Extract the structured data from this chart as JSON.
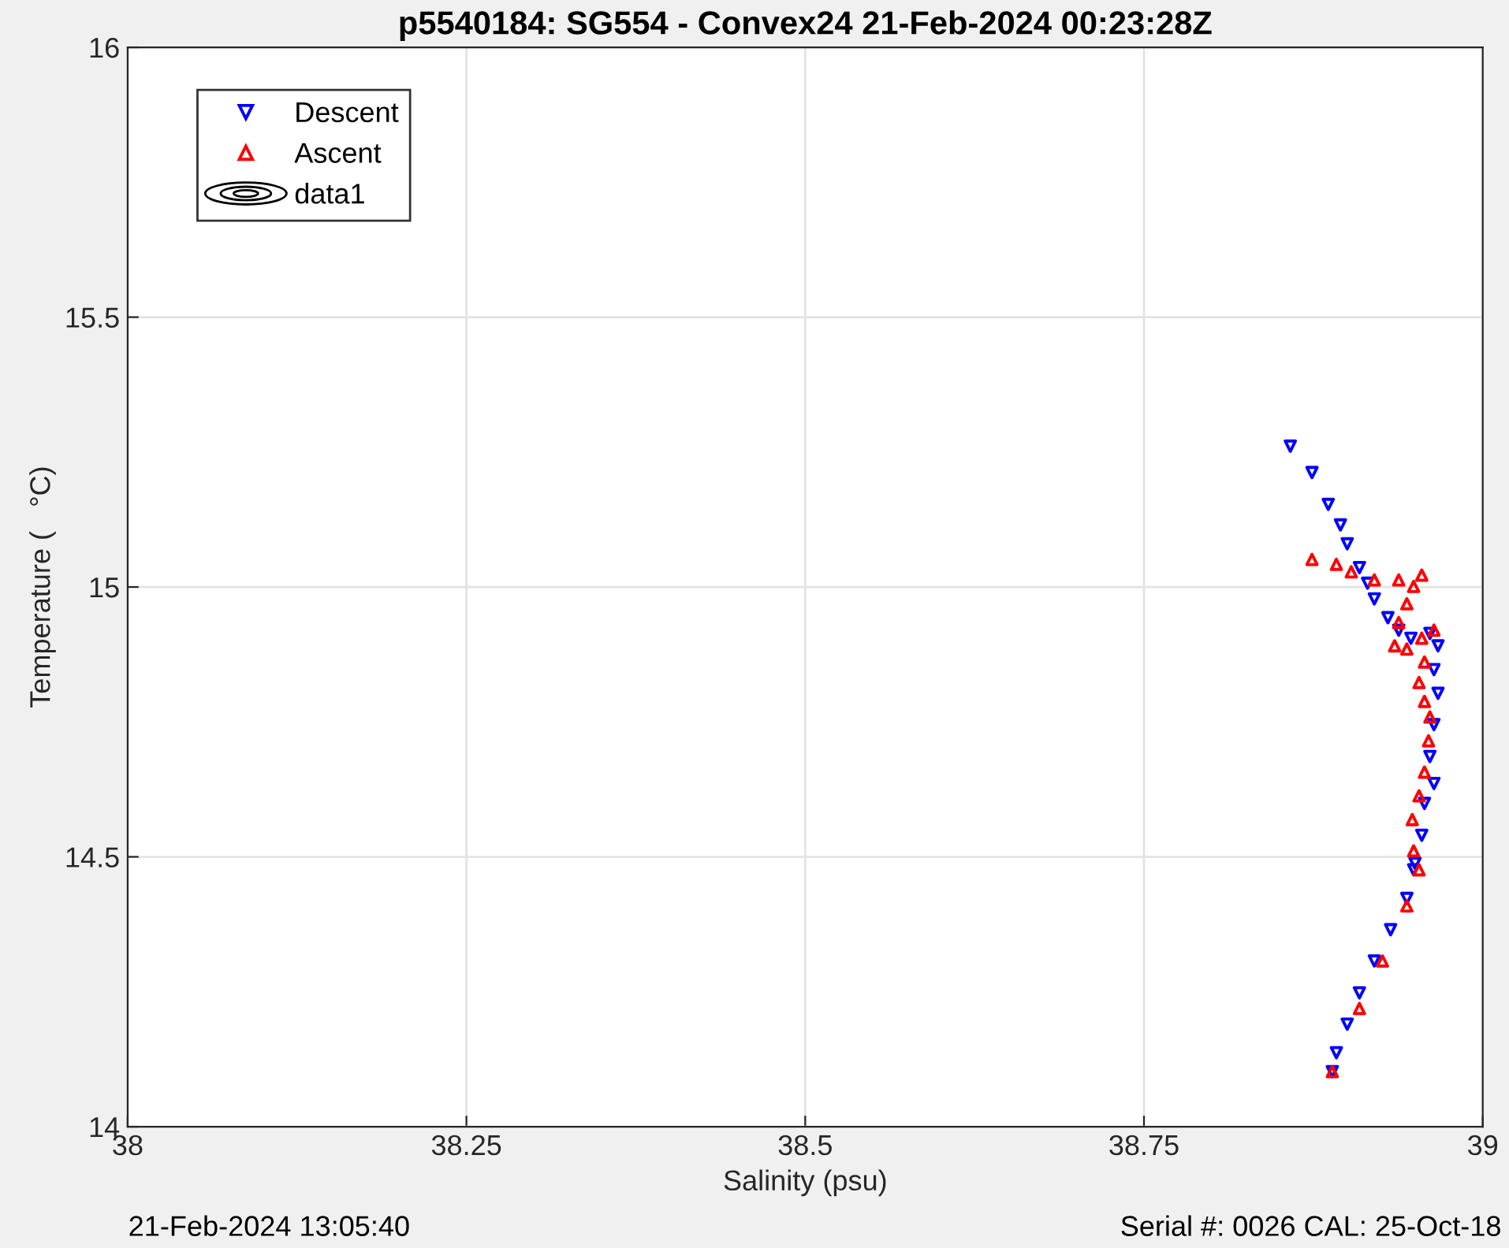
{
  "chart_data": {
    "type": "scatter",
    "title": "p5540184: SG554 - Convex24 21-Feb-2024 00:23:28Z",
    "xlabel": "Salinity (psu)",
    "ylabel": "Temperature (   °C)",
    "xlim": [
      38,
      39
    ],
    "xticks": [
      38,
      38.25,
      38.5,
      38.75,
      39
    ],
    "ylim": [
      14,
      16
    ],
    "yticks": [
      14,
      14.5,
      15,
      15.5,
      16
    ],
    "grid": true,
    "legend": "top left",
    "series": [
      {
        "name": "Descent",
        "color": "#0000ff",
        "marker": "triangle-down",
        "x": [
          38.858,
          38.874,
          38.886,
          38.895,
          38.9,
          38.909,
          38.915,
          38.92,
          38.93,
          38.938,
          38.947,
          38.961,
          38.967,
          38.964,
          38.967,
          38.964,
          38.961,
          38.964,
          38.957,
          38.955,
          38.95,
          38.949,
          38.944,
          38.932,
          38.92,
          38.909,
          38.9,
          38.892,
          38.889
        ],
        "values": [
          15.261,
          15.212,
          15.153,
          15.115,
          15.08,
          15.036,
          15.007,
          14.978,
          14.943,
          14.92,
          14.905,
          14.914,
          14.891,
          14.847,
          14.803,
          14.745,
          14.686,
          14.636,
          14.599,
          14.54,
          14.488,
          14.476,
          14.423,
          14.365,
          14.307,
          14.248,
          14.19,
          14.137,
          14.102
        ]
      },
      {
        "name": "Ascent",
        "color": "#ff0000",
        "marker": "triangle",
        "x": [
          38.889,
          38.909,
          38.926,
          38.944,
          38.953,
          38.949,
          38.948,
          38.953,
          38.957,
          38.96,
          38.961,
          38.957,
          38.953,
          38.957,
          38.964,
          38.955,
          38.944,
          38.935,
          38.938,
          38.944,
          38.949,
          38.955,
          38.938,
          38.92,
          38.903,
          38.892,
          38.874
        ],
        "values": [
          14.102,
          14.219,
          14.307,
          14.409,
          14.476,
          14.511,
          14.569,
          14.613,
          14.657,
          14.715,
          14.759,
          14.788,
          14.823,
          14.861,
          14.92,
          14.905,
          14.885,
          14.891,
          14.934,
          14.969,
          15.001,
          15.022,
          15.013,
          15.013,
          15.028,
          15.042,
          15.051
        ]
      },
      {
        "name": "data1",
        "type": "other",
        "color": "#000000"
      }
    ],
    "annotations": [
      "21-Feb-2024 13:05:40",
      "Serial #: 0026 CAL: 25-Oct-18"
    ]
  }
}
